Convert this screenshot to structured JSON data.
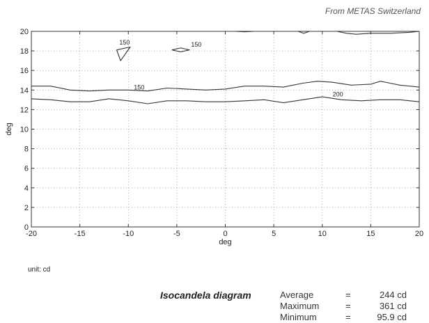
{
  "credit": "From METAS Switzerland",
  "unit_label": "unit: cd",
  "summary": {
    "title": "Isocandela diagram",
    "stats": [
      {
        "label": "Average",
        "eq": "=",
        "value": "244 cd"
      },
      {
        "label": "Maximum",
        "eq": "=",
        "value": "361 cd"
      },
      {
        "label": "Minimum",
        "eq": "=",
        "value": "95.9 cd"
      }
    ]
  },
  "chart_data": {
    "type": "line",
    "title": "",
    "xlabel": "deg",
    "ylabel": "deg",
    "xlim": [
      -20,
      20
    ],
    "ylim": [
      0,
      20
    ],
    "xticks": [
      -20,
      -15,
      -10,
      -5,
      0,
      5,
      10,
      15,
      20
    ],
    "yticks": [
      0,
      2,
      4,
      6,
      8,
      10,
      12,
      14,
      16,
      18,
      20
    ],
    "grid": true,
    "grid_style": "dotted",
    "line_color": "#333333",
    "series": [
      {
        "label": "150",
        "label_at": [
          -9.5,
          13.9
        ],
        "points": [
          [
            -20,
            14.4
          ],
          [
            -18,
            14.4
          ],
          [
            -16,
            14.0
          ],
          [
            -14,
            13.9
          ],
          [
            -12,
            14.0
          ],
          [
            -10,
            14.0
          ],
          [
            -8,
            13.9
          ],
          [
            -6,
            14.2
          ],
          [
            -4,
            14.1
          ],
          [
            -2,
            14.0
          ],
          [
            0,
            14.1
          ],
          [
            2,
            14.4
          ],
          [
            4,
            14.4
          ],
          [
            6,
            14.3
          ],
          [
            8,
            14.7
          ],
          [
            9.5,
            14.9
          ],
          [
            11,
            14.8
          ],
          [
            13,
            14.5
          ],
          [
            15,
            14.6
          ],
          [
            16,
            14.9
          ],
          [
            17,
            14.7
          ],
          [
            18,
            14.5
          ],
          [
            20,
            14.3
          ]
        ]
      },
      {
        "label": "200",
        "label_at": [
          11.0,
          13.2
        ],
        "points": [
          [
            -20,
            13.1
          ],
          [
            -18,
            13.0
          ],
          [
            -16,
            12.8
          ],
          [
            -14,
            12.8
          ],
          [
            -12,
            13.1
          ],
          [
            -10,
            12.9
          ],
          [
            -8,
            12.6
          ],
          [
            -6,
            12.9
          ],
          [
            -4,
            12.9
          ],
          [
            -2,
            12.8
          ],
          [
            0,
            12.8
          ],
          [
            2,
            12.9
          ],
          [
            4,
            13.0
          ],
          [
            6,
            12.7
          ],
          [
            8,
            13.0
          ],
          [
            10,
            13.3
          ],
          [
            12,
            13.0
          ],
          [
            14,
            12.9
          ],
          [
            16,
            13.0
          ],
          [
            18,
            13.0
          ],
          [
            20,
            12.8
          ]
        ]
      },
      {
        "label": "150",
        "label_at": [
          -11.0,
          18.5
        ],
        "points": [
          [
            -11.2,
            18.1
          ],
          [
            -9.8,
            18.4
          ],
          [
            -10.8,
            17.0
          ],
          [
            -11.2,
            18.1
          ]
        ]
      },
      {
        "label": "150",
        "label_at": [
          -3.6,
          18.3
        ],
        "points": [
          [
            -5.5,
            18.1
          ],
          [
            -4.6,
            18.3
          ],
          [
            -3.7,
            18.1
          ],
          [
            -4.6,
            17.9
          ],
          [
            -5.5,
            18.1
          ]
        ]
      },
      {
        "label": "",
        "label_at": null,
        "points": [
          [
            0,
            20.0
          ],
          [
            1,
            20.0
          ],
          [
            2,
            19.95
          ],
          [
            3,
            20.0
          ]
        ]
      },
      {
        "label": "",
        "label_at": null,
        "points": [
          [
            7.5,
            20.0
          ],
          [
            8.1,
            19.8
          ],
          [
            8.7,
            20.0
          ]
        ]
      },
      {
        "label": "",
        "label_at": null,
        "points": [
          [
            11.5,
            20.0
          ],
          [
            12.5,
            19.8
          ],
          [
            13.5,
            19.7
          ],
          [
            15,
            19.8
          ],
          [
            17,
            19.8
          ],
          [
            19,
            19.9
          ],
          [
            20,
            20.0
          ]
        ]
      }
    ]
  }
}
